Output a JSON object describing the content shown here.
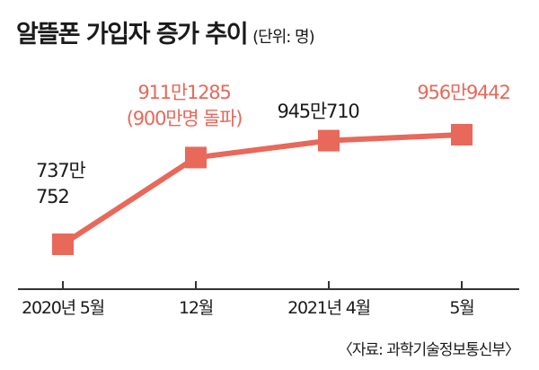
{
  "title": "알뜰폰 가입자 증가 추이",
  "unit": "(단위: 명)",
  "source": "〈자료: 과학기술정보통신부〉",
  "colors": {
    "series": "#e8685a",
    "marker": "#e8685a",
    "axis": "#333333",
    "text": "#1a1a1a"
  },
  "chart_data": {
    "type": "line",
    "categories": [
      "2020년 5월",
      "12월",
      "2021년 4월",
      "5월"
    ],
    "values": [
      7370752,
      9111285,
      9450710,
      9569442
    ],
    "data_labels": [
      [
        "737만",
        "752"
      ],
      [
        "911만1285",
        "(900만명 돌파)"
      ],
      [
        "945만710"
      ],
      [
        "956만9442"
      ]
    ],
    "data_label_colors": [
      "#1a1a1a",
      "#e8685a",
      "#1a1a1a",
      "#e8685a"
    ],
    "xlabel": "",
    "ylabel": "",
    "grid": false,
    "legend": "none"
  }
}
